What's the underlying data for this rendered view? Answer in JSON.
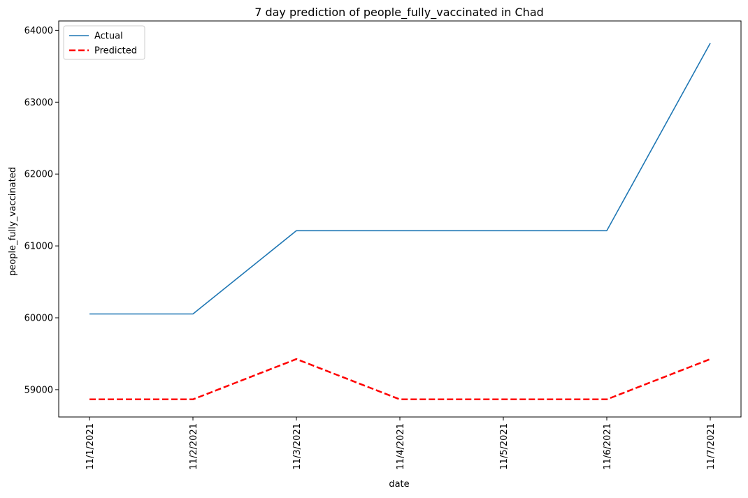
{
  "chart_data": {
    "type": "line",
    "title": "7 day prediction of people_fully_vaccinated in Chad",
    "xlabel": "date",
    "ylabel": "people_fully_vaccinated",
    "categories": [
      "11/1/2021",
      "11/2/2021",
      "11/3/2021",
      "11/4/2021",
      "11/5/2021",
      "11/6/2021",
      "11/7/2021"
    ],
    "ylim": [
      58620,
      64130
    ],
    "y_ticks": [
      59000,
      60000,
      61000,
      62000,
      63000,
      64000
    ],
    "x_tick_rotation": "vertical",
    "grid": false,
    "legend_position": "upper-left",
    "series": [
      {
        "name": "Actual",
        "values": [
          60053,
          60053,
          61212,
          61212,
          61212,
          61212,
          63820
        ],
        "color": "#1f77b4",
        "line_style": "solid"
      },
      {
        "name": "Predicted",
        "values": [
          58865,
          58865,
          59426,
          58865,
          58865,
          58865,
          59426
        ],
        "color": "#ff0000",
        "line_style": "dashed"
      }
    ]
  }
}
